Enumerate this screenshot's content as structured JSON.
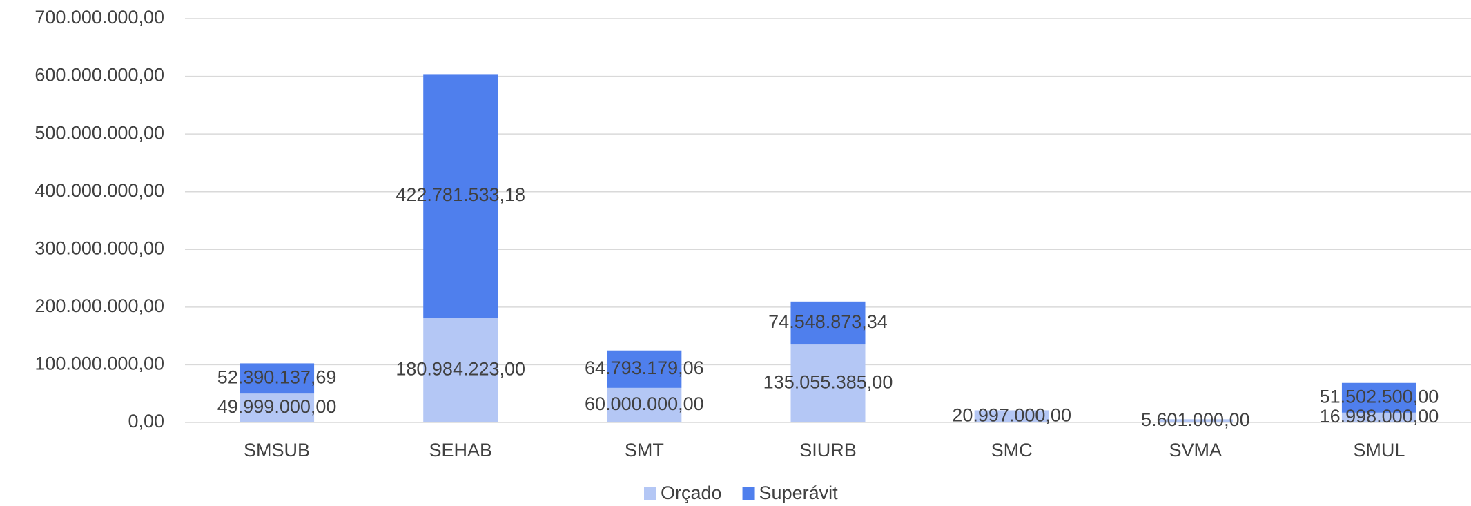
{
  "chart_data": {
    "type": "bar",
    "stacked": true,
    "categories": [
      "SMSUB",
      "SEHAB",
      "SMT",
      "SIURB",
      "SMC",
      "SVMA",
      "SMUL"
    ],
    "series": [
      {
        "name": "Orçado",
        "color": "#b4c7f5",
        "values": [
          49999000,
          180984223,
          60000000,
          135055385,
          20997000,
          5601000,
          16998000
        ],
        "value_labels": [
          "49.999.000,00",
          "180.984.223,00",
          "60.000.000,00",
          "135.055.385,00",
          "20.997.000,00",
          "5.601.000,00",
          "16.998.000,00"
        ]
      },
      {
        "name": "Superávit",
        "color": "#4f7fed",
        "values": [
          52390137.69,
          422781533.18,
          64793179.06,
          74548873.34,
          null,
          null,
          51502500
        ],
        "value_labels": [
          "52.390.137,69",
          "422.781.533,18",
          "64.793.179,06",
          "74.548.873,34",
          null,
          null,
          "51.502.500,00"
        ]
      }
    ],
    "ylim": [
      0,
      700000000
    ],
    "yticks": [
      {
        "value": 0,
        "label": "0,00"
      },
      {
        "value": 100000000,
        "label": "100.000.000,00"
      },
      {
        "value": 200000000,
        "label": "200.000.000,00"
      },
      {
        "value": 300000000,
        "label": "300.000.000,00"
      },
      {
        "value": 400000000,
        "label": "400.000.000,00"
      },
      {
        "value": 500000000,
        "label": "500.000.000,00"
      },
      {
        "value": 600000000,
        "label": "600.000.000,00"
      },
      {
        "value": 700000000,
        "label": "700.000.000,00"
      }
    ],
    "grid": true,
    "legend": "bottom"
  }
}
